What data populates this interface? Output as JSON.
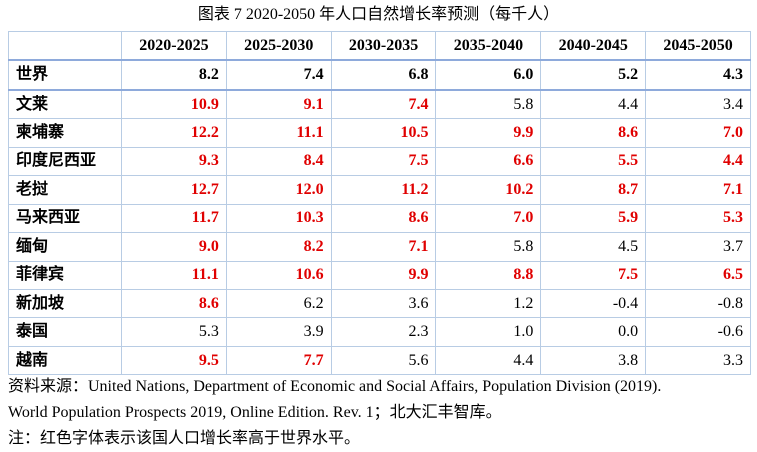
{
  "caption": "图表 7   2020-2050 年人口自然增长率预测（每千人）",
  "columns": [
    "",
    "2020-2025",
    "2025-2030",
    "2030-2035",
    "2035-2040",
    "2040-2045",
    "2045-2050"
  ],
  "rows": [
    {
      "name": "世界",
      "values": [
        "8.2",
        "7.4",
        "6.8",
        "6.0",
        "5.2",
        "4.3"
      ],
      "high": [
        false,
        false,
        false,
        false,
        false,
        false
      ]
    },
    {
      "name": "文莱",
      "values": [
        "10.9",
        "9.1",
        "7.4",
        "5.8",
        "4.4",
        "3.4"
      ],
      "high": [
        true,
        true,
        true,
        false,
        false,
        false
      ]
    },
    {
      "name": "柬埔寨",
      "values": [
        "12.2",
        "11.1",
        "10.5",
        "9.9",
        "8.6",
        "7.0"
      ],
      "high": [
        true,
        true,
        true,
        true,
        true,
        true
      ]
    },
    {
      "name": "印度尼西亚",
      "values": [
        "9.3",
        "8.4",
        "7.5",
        "6.6",
        "5.5",
        "4.4"
      ],
      "high": [
        true,
        true,
        true,
        true,
        true,
        true
      ]
    },
    {
      "name": "老挝",
      "values": [
        "12.7",
        "12.0",
        "11.2",
        "10.2",
        "8.7",
        "7.1"
      ],
      "high": [
        true,
        true,
        true,
        true,
        true,
        true
      ]
    },
    {
      "name": "马来西亚",
      "values": [
        "11.7",
        "10.3",
        "8.6",
        "7.0",
        "5.9",
        "5.3"
      ],
      "high": [
        true,
        true,
        true,
        true,
        true,
        true
      ]
    },
    {
      "name": "缅甸",
      "values": [
        "9.0",
        "8.2",
        "7.1",
        "5.8",
        "4.5",
        "3.7"
      ],
      "high": [
        true,
        true,
        true,
        false,
        false,
        false
      ]
    },
    {
      "name": "菲律宾",
      "values": [
        "11.1",
        "10.6",
        "9.9",
        "8.8",
        "7.5",
        "6.5"
      ],
      "high": [
        true,
        true,
        true,
        true,
        true,
        true
      ]
    },
    {
      "name": "新加坡",
      "values": [
        "8.6",
        "6.2",
        "3.6",
        "1.2",
        "-0.4",
        "-0.8"
      ],
      "high": [
        true,
        false,
        false,
        false,
        false,
        false
      ]
    },
    {
      "name": "泰国",
      "values": [
        "5.3",
        "3.9",
        "2.3",
        "1.0",
        "0.0",
        "-0.6"
      ],
      "high": [
        false,
        false,
        false,
        false,
        false,
        false
      ]
    },
    {
      "name": "越南",
      "values": [
        "9.5",
        "7.7",
        "5.6",
        "4.4",
        "3.8",
        "3.3"
      ],
      "high": [
        true,
        true,
        false,
        false,
        false,
        false
      ]
    }
  ],
  "notes": [
    "资料来源：United Nations, Department of Economic and Social Affairs, Population Division (2019).",
    "World Population Prospects 2019, Online Edition. Rev. 1；北大汇丰智库。",
    "注：红色字体表示该国人口增长率高于世界水平。"
  ],
  "colors": {
    "highlight": "#e00000",
    "border": "#b8cce4"
  }
}
